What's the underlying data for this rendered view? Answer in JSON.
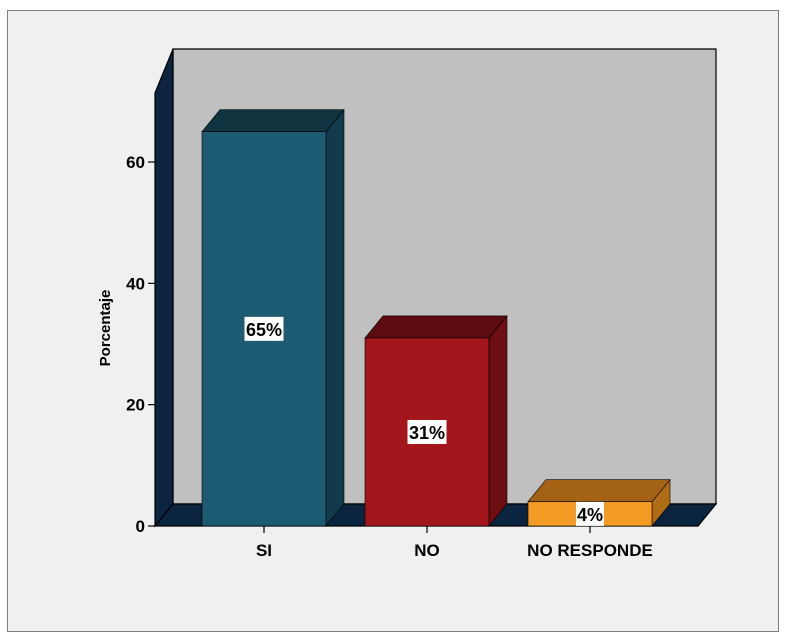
{
  "chart_data": {
    "type": "bar",
    "categories": [
      "SI",
      "NO",
      "NO RESPONDE"
    ],
    "values": [
      65,
      31,
      4
    ],
    "data_labels": [
      "65%",
      "31%",
      "4%"
    ],
    "ylabel": "Porcentaje",
    "ylim": [
      0,
      75
    ],
    "yticks": [
      0,
      20,
      40,
      60
    ],
    "grid": false,
    "legend": "none",
    "colors": {
      "bars": [
        "#1c5b72",
        "#a3161b",
        "#f49b23"
      ],
      "bar_tops": [
        "#103440",
        "#5d0d10",
        "#a36214"
      ],
      "bar_sides": [
        "#113b4a",
        "#6d0f12",
        "#b06d16"
      ],
      "wall": "#c0c0c0",
      "wall_side": "#0b2540",
      "floor": "#0b2540"
    }
  }
}
